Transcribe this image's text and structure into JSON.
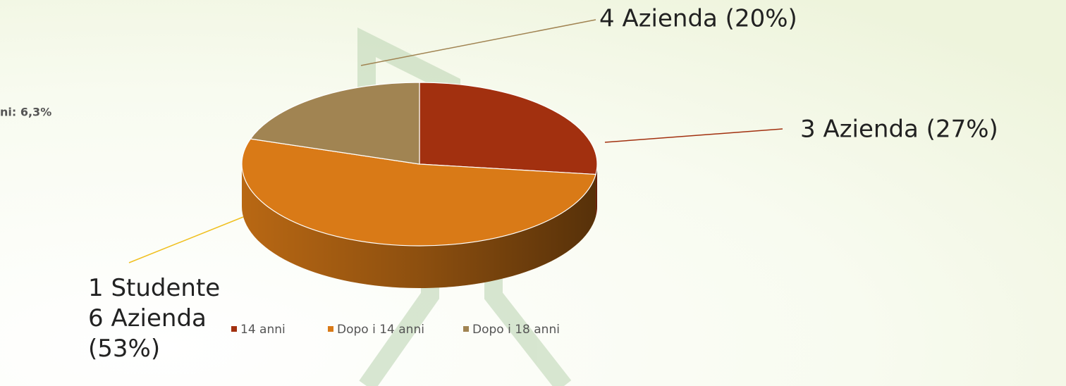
{
  "chart_data": {
    "type": "pie",
    "annotation": "ni: 6,3%",
    "categories": [
      "14 anni",
      "Dopo i 14 anni",
      "Dopo i 18 anni"
    ],
    "values": [
      27,
      53,
      20
    ],
    "value_labels": [
      "3 Azienda (27%)",
      "1 Studente\n6 Azienda\n(53%)",
      "4 Azienda (20%)"
    ],
    "colors": [
      "#a2300f",
      "#d97a17",
      "#a18452"
    ],
    "legend": "bottom"
  }
}
